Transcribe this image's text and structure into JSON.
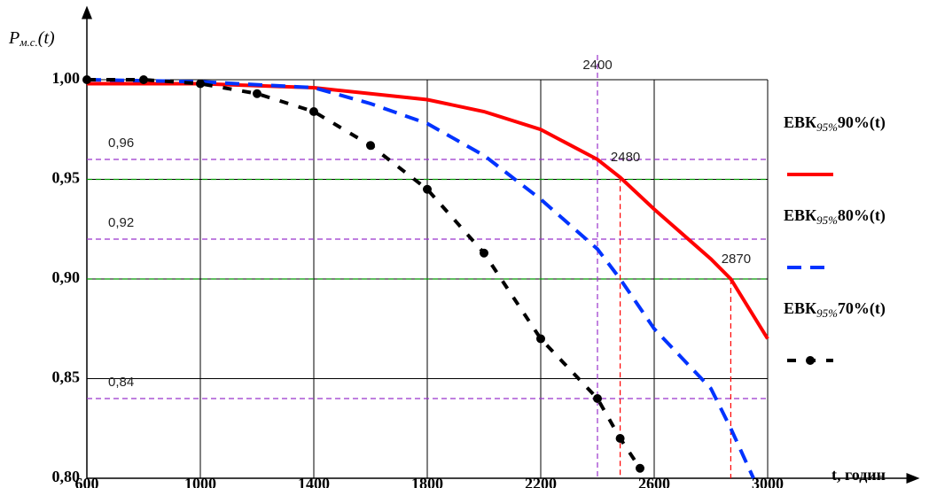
{
  "chart_data": {
    "type": "line",
    "ylabel": {
      "main": "P",
      "sub": "м.с.",
      "rest": "(t)"
    },
    "xlabel": "t, годин",
    "xlim": [
      600,
      3000
    ],
    "ylim": [
      0.8,
      1.0
    ],
    "xticks": [
      600,
      1000,
      1400,
      1800,
      2200,
      2600,
      3000
    ],
    "yticks": [
      {
        "value": 0.8,
        "label": "0,80"
      },
      {
        "value": 0.85,
        "label": "0,85"
      },
      {
        "value": 0.9,
        "label": "0,90"
      },
      {
        "value": 0.95,
        "label": "0,95"
      },
      {
        "value": 1.0,
        "label": "1,00"
      }
    ],
    "grid": true,
    "series": [
      {
        "name": "ЕВК95%90%(t)",
        "color": "#ff0000",
        "style": "solid",
        "x": [
          600,
          1000,
          1400,
          1800,
          2000,
          2200,
          2400,
          2480,
          2600,
          2800,
          2870,
          3000
        ],
        "values": [
          0.998,
          0.998,
          0.996,
          0.99,
          0.984,
          0.975,
          0.96,
          0.951,
          0.935,
          0.91,
          0.9,
          0.87
        ]
      },
      {
        "name": "ЕВК95%80%(t)",
        "color": "#0033ff",
        "style": "dashed",
        "x": [
          600,
          1000,
          1400,
          1600,
          1800,
          2000,
          2200,
          2400,
          2480,
          2600,
          2800,
          2870,
          2950
        ],
        "values": [
          1.0,
          0.999,
          0.996,
          0.988,
          0.978,
          0.962,
          0.94,
          0.915,
          0.9,
          0.875,
          0.845,
          0.825,
          0.8
        ]
      },
      {
        "name": "ЕВК95%70%(t)",
        "color": "#000000",
        "style": "dotted",
        "x": [
          600,
          800,
          1000,
          1200,
          1400,
          1600,
          1800,
          2000,
          2200,
          2400,
          2480,
          2550
        ],
        "values": [
          1.0,
          1.0,
          0.998,
          0.993,
          0.984,
          0.967,
          0.945,
          0.913,
          0.87,
          0.84,
          0.82,
          0.805
        ]
      }
    ],
    "hlines": [
      {
        "value": 0.96,
        "label": "0,96",
        "color": "#9933cc"
      },
      {
        "value": 0.95,
        "color": "#009900"
      },
      {
        "value": 0.92,
        "label": "0,92",
        "color": "#9933cc"
      },
      {
        "value": 0.9,
        "color": "#009900"
      },
      {
        "value": 0.84,
        "label": "0,84",
        "color": "#9933cc"
      }
    ],
    "vlines": [
      {
        "value": 2400,
        "label": "2400",
        "color": "#9933cc",
        "ymax": 1.0
      },
      {
        "value": 2480,
        "label": "2480",
        "color": "#ff0000",
        "ymax": 0.951
      },
      {
        "value": 2870,
        "label": "2870",
        "color": "#ff0000",
        "ymax": 0.9
      }
    ]
  }
}
